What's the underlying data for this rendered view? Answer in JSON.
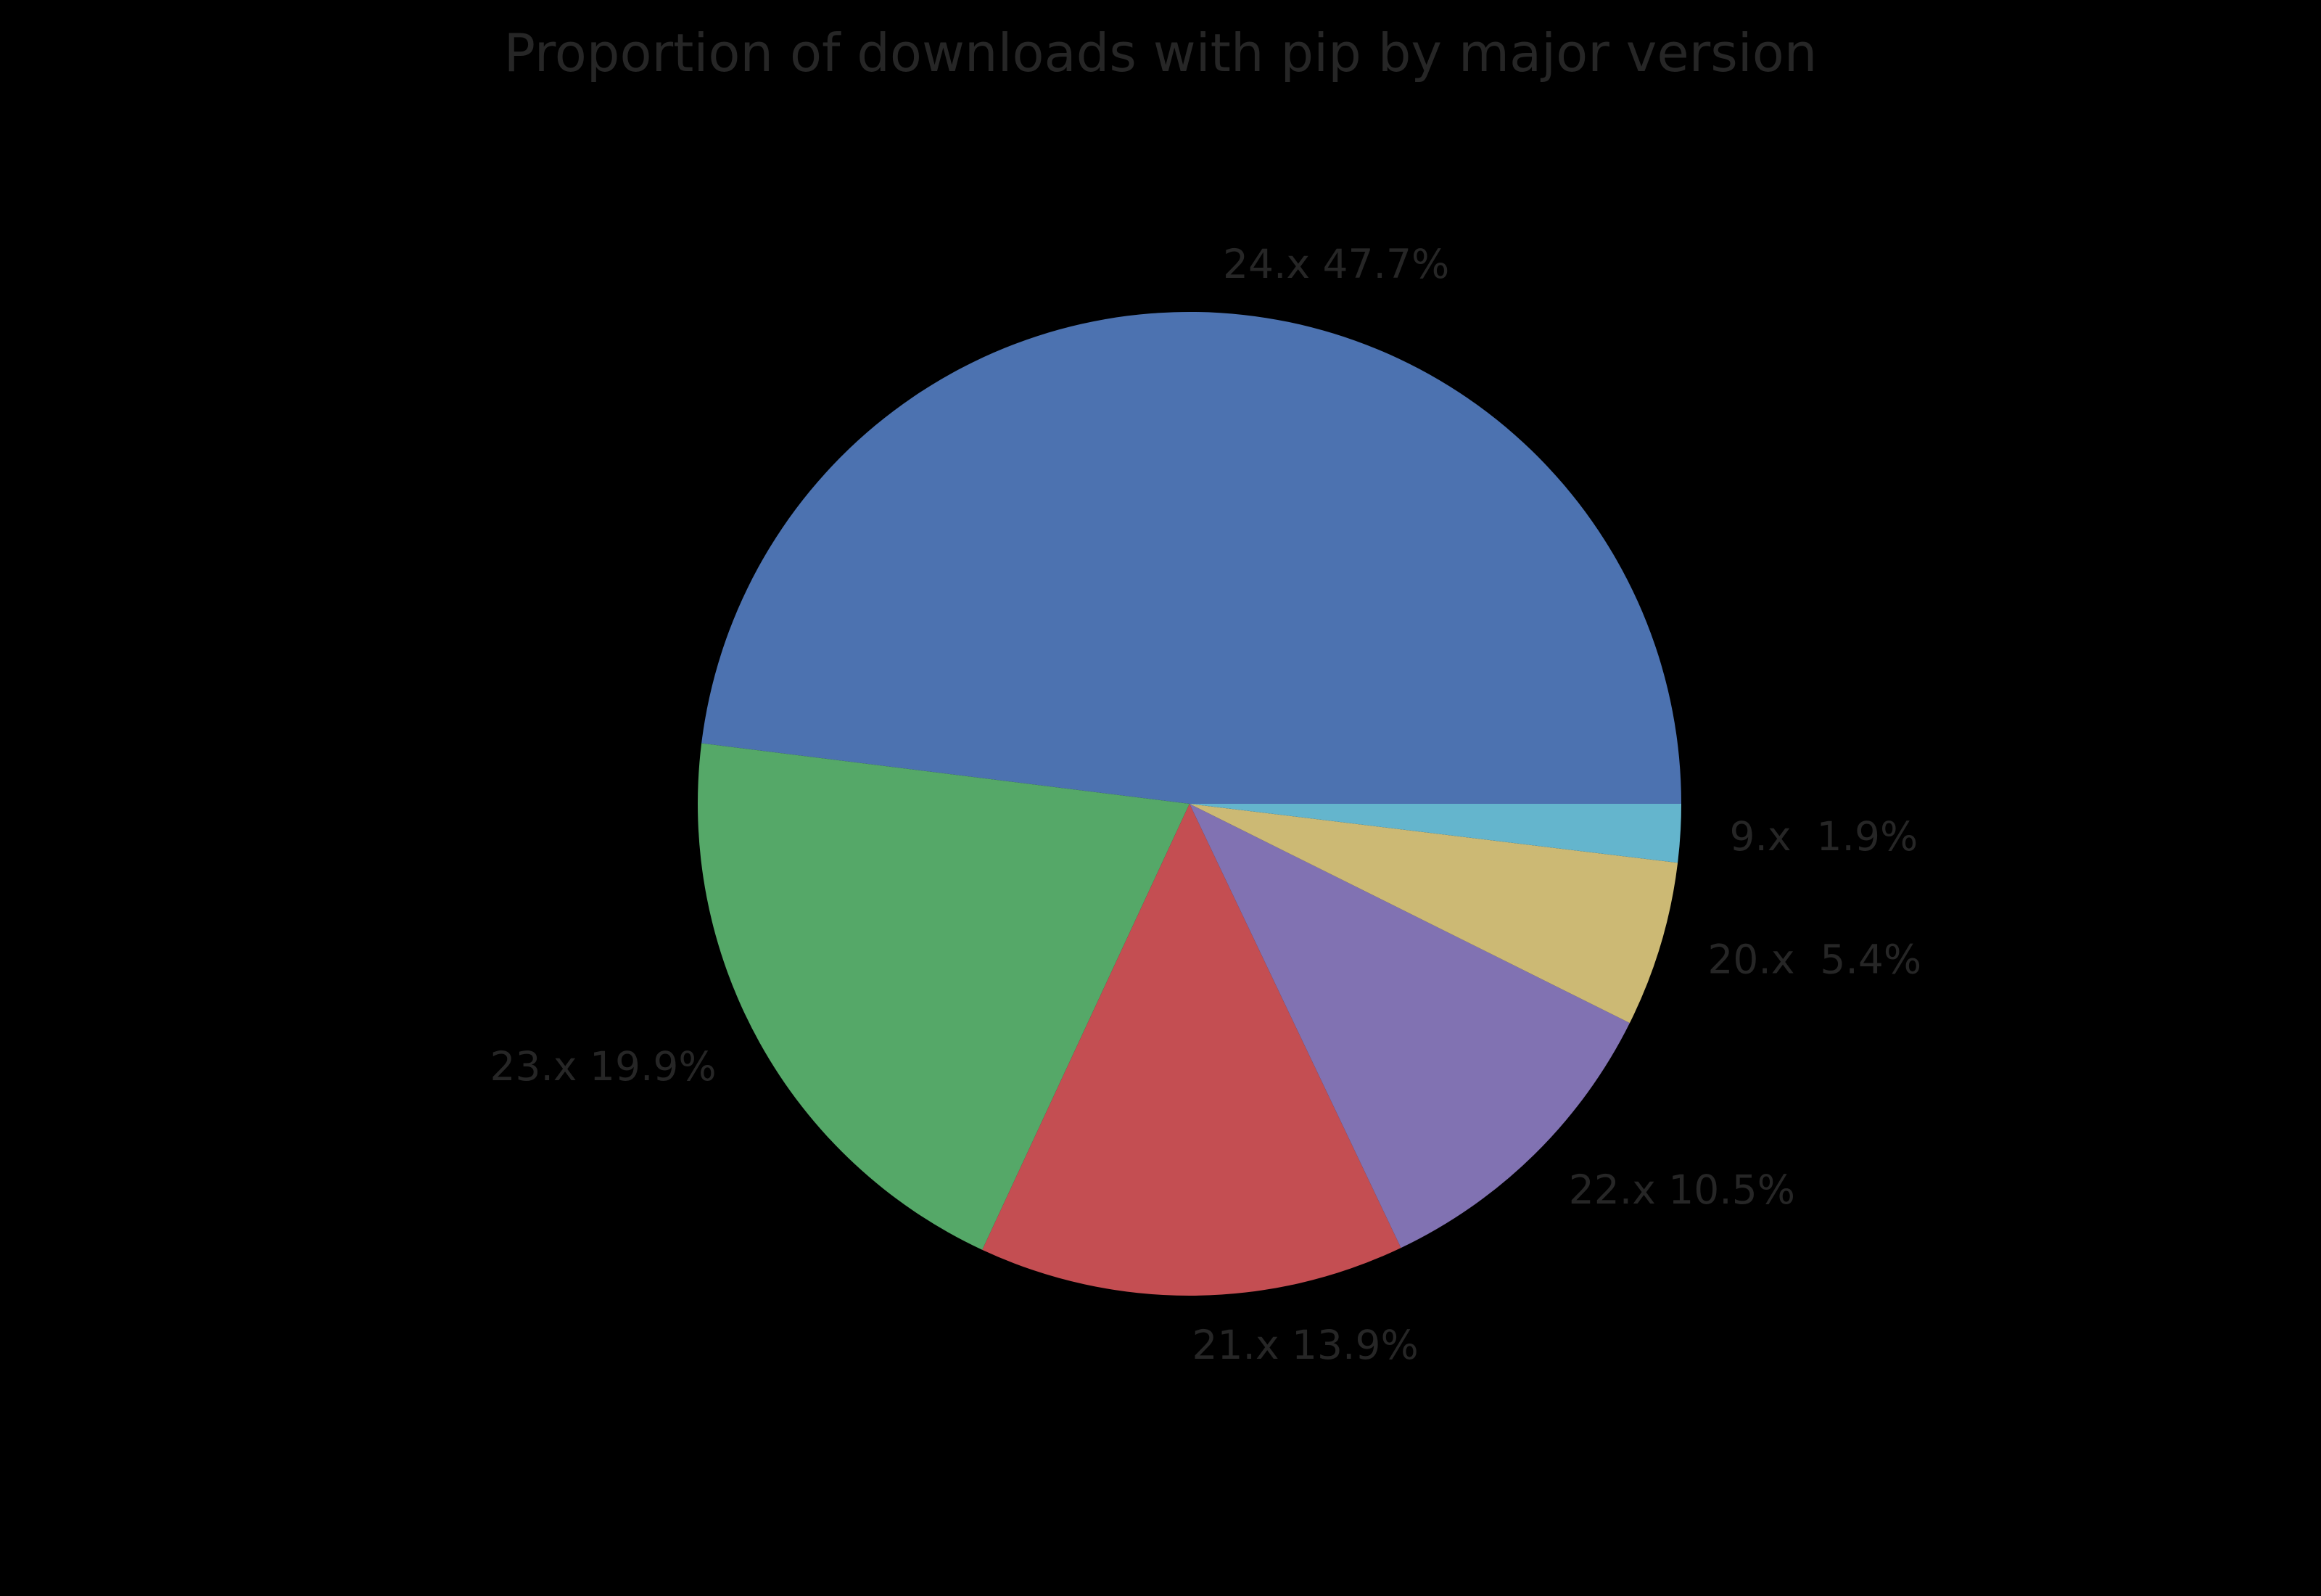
{
  "chart_data": {
    "type": "pie",
    "title": "Proportion of downloads with pip by major version",
    "background": "#000000",
    "text_color": "#262626",
    "start_angle_deg": 0,
    "direction": "counterclockwise",
    "label_distance_ratio": 1.1,
    "legend": "none",
    "slices": [
      {
        "label": "24.x",
        "value_pct": 47.7,
        "display_label": "24.x 47.7%",
        "color": "#4c72b0"
      },
      {
        "label": "23.x",
        "value_pct": 19.9,
        "display_label": "23.x 19.9%",
        "color": "#55a868"
      },
      {
        "label": "21.x",
        "value_pct": 13.9,
        "display_label": "21.x 13.9%",
        "color": "#c44e52"
      },
      {
        "label": "22.x",
        "value_pct": 10.5,
        "display_label": "22.x 10.5%",
        "color": "#8172b2"
      },
      {
        "label": "20.x",
        "value_pct": 5.4,
        "display_label": "20.x  5.4%",
        "color": "#ccb974"
      },
      {
        "label": "9.x",
        "value_pct": 1.9,
        "display_label": "9.x  1.9%",
        "color": "#64b5cd"
      }
    ]
  }
}
